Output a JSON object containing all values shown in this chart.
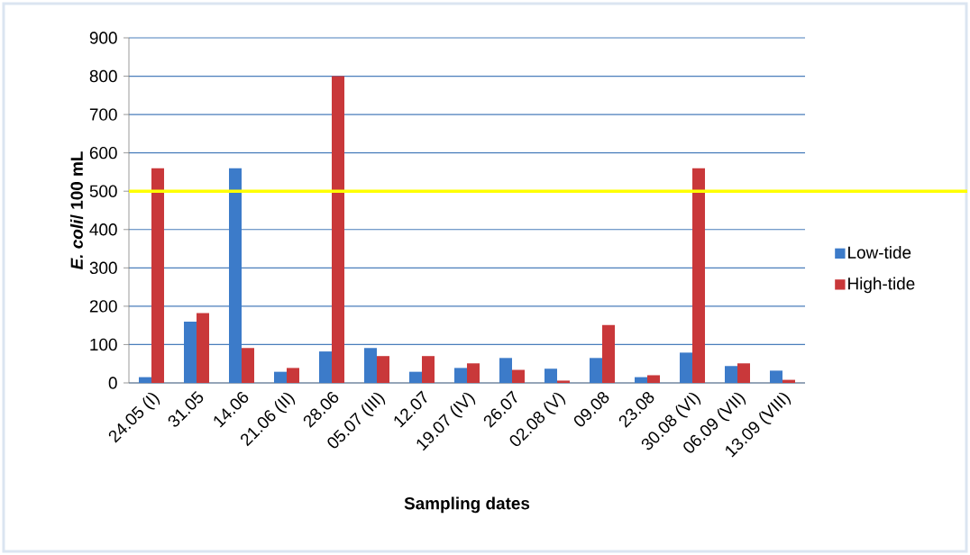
{
  "chart_data": {
    "type": "bar",
    "xlabel": "Sampling dates",
    "ylabel": "*E. coli*/ 100 mL",
    "categories": [
      "24.05 (I)",
      "31.05",
      "14.06",
      "21.06 (II)",
      "28.06",
      "05.07 (III)",
      "12.07",
      "19.07 (IV)",
      "26.07",
      "02.08 (V)",
      "09.08",
      "23.08",
      "30.08 (VI)",
      "06.09 (VII)",
      "13.09 (VIII)"
    ],
    "series": [
      {
        "name": "Low-tide",
        "color": "#3c7bc9",
        "values": [
          15,
          160,
          560,
          29,
          82,
          91,
          29,
          39,
          65,
          37,
          65,
          15,
          79,
          44,
          32
        ]
      },
      {
        "name": "High-tide",
        "color": "#c9383a",
        "values": [
          560,
          182,
          91,
          39,
          800,
          70,
          70,
          51,
          34,
          6,
          151,
          20,
          560,
          51,
          8
        ]
      }
    ],
    "ylim": [
      0,
      900
    ],
    "yticks": [
      0,
      100,
      200,
      300,
      400,
      500,
      600,
      700,
      800,
      900
    ],
    "grid": "y",
    "legend": "right",
    "ref_lines": [
      {
        "axis": "y",
        "value": 500,
        "color": "#ffff00"
      }
    ]
  }
}
